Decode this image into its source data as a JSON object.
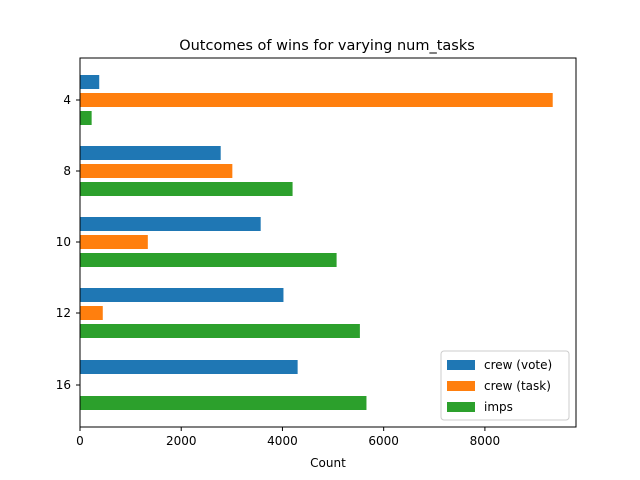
{
  "chart_data": {
    "type": "bar",
    "orientation": "horizontal",
    "title": "Outcomes of wins for varying num_tasks",
    "xlabel": "Count",
    "ylabel": "",
    "categories": [
      "4",
      "8",
      "10",
      "12",
      "16"
    ],
    "series": [
      {
        "name": "crew (vote)",
        "color": "#1f77b4",
        "values": [
          380,
          2780,
          3570,
          4020,
          4300
        ]
      },
      {
        "name": "crew (task)",
        "color": "#ff7f0e",
        "values": [
          9340,
          3010,
          1340,
          450,
          0
        ]
      },
      {
        "name": "imps",
        "color": "#2ca02c",
        "values": [
          230,
          4200,
          5070,
          5530,
          5660
        ]
      }
    ],
    "xlim": [
      0,
      9800
    ],
    "xticks": [
      0,
      2000,
      4000,
      6000,
      8000
    ],
    "xtick_labels": [
      "0",
      "2000",
      "4000",
      "6000",
      "8000"
    ],
    "grid": false,
    "legend_position": "lower right"
  }
}
